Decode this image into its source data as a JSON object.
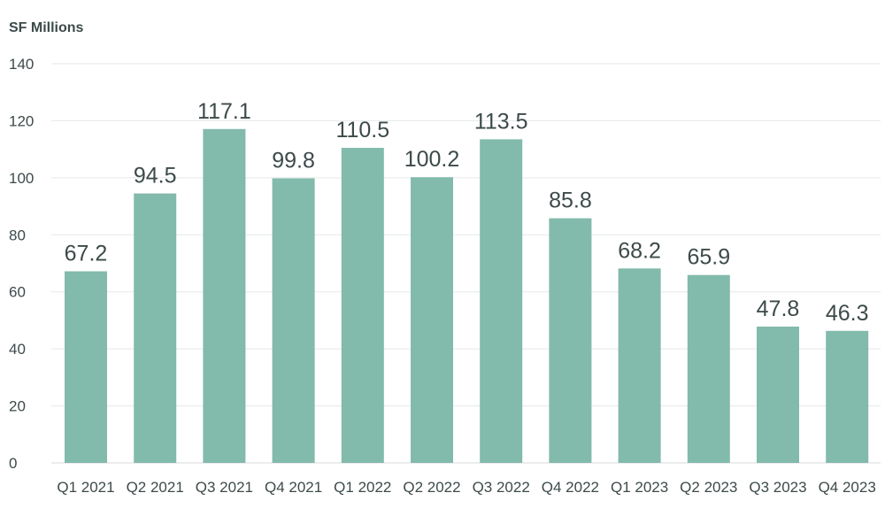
{
  "chart_data": {
    "type": "bar",
    "title": "",
    "xlabel": "",
    "ylabel": "SF Millions",
    "categories": [
      "Q1 2021",
      "Q2 2021",
      "Q3 2021",
      "Q4 2021",
      "Q1 2022",
      "Q2 2022",
      "Q3 2022",
      "Q4 2022",
      "Q1 2023",
      "Q2 2023",
      "Q3 2023",
      "Q4 2023"
    ],
    "values": [
      67.2,
      94.5,
      117.1,
      99.8,
      110.5,
      100.2,
      113.5,
      85.8,
      68.2,
      65.9,
      47.8,
      46.3
    ],
    "data_labels": [
      "67.2",
      "94.5",
      "117.1",
      "99.8",
      "110.5",
      "100.2",
      "113.5",
      "85.8",
      "68.2",
      "65.9",
      "47.8",
      "46.3"
    ],
    "ylim": [
      0,
      140
    ],
    "yticks": [
      "0",
      "20",
      "40",
      "60",
      "80",
      "100",
      "120",
      "140"
    ],
    "grid": true,
    "legend": "none",
    "bar_color": "#82baab",
    "text_color": "#3d4a4a"
  }
}
